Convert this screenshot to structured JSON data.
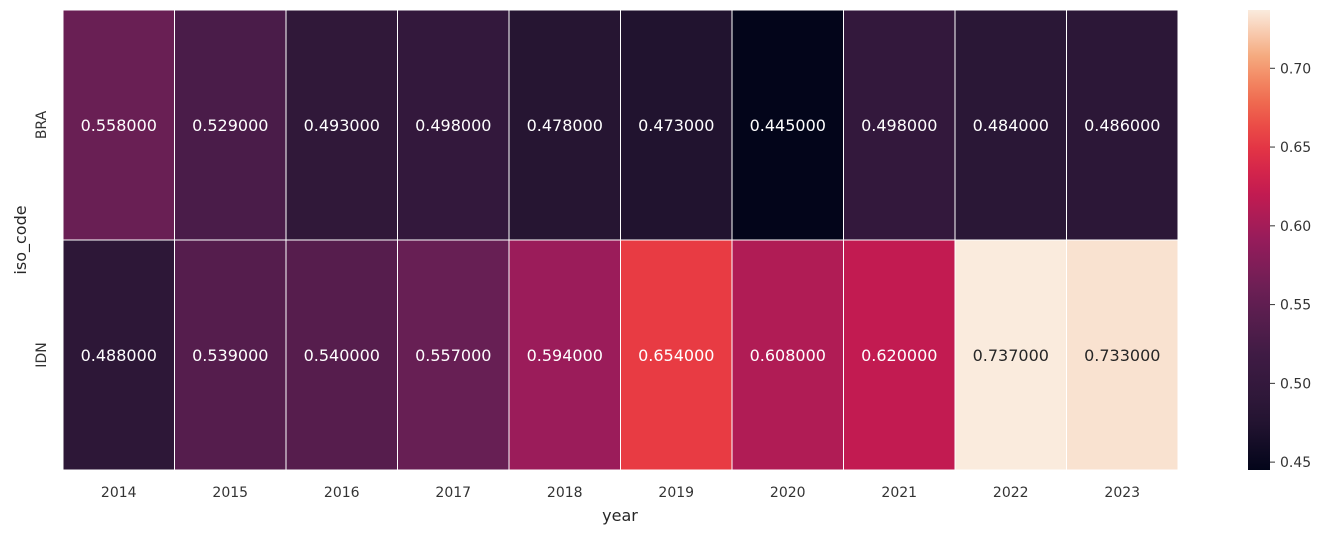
{
  "chart_data": {
    "type": "heatmap",
    "title": "",
    "xlabel": "year",
    "ylabel": "iso_code",
    "x": [
      "2014",
      "2015",
      "2016",
      "2017",
      "2018",
      "2019",
      "2020",
      "2021",
      "2022",
      "2023"
    ],
    "y": [
      "BRA",
      "IDN"
    ],
    "values": [
      [
        0.558,
        0.529,
        0.493,
        0.498,
        0.478,
        0.473,
        0.445,
        0.498,
        0.484,
        0.486
      ],
      [
        0.488,
        0.539,
        0.54,
        0.557,
        0.594,
        0.654,
        0.608,
        0.62,
        0.737,
        0.733
      ]
    ],
    "value_labels": [
      [
        "0.558000",
        "0.529000",
        "0.493000",
        "0.498000",
        "0.478000",
        "0.473000",
        "0.445000",
        "0.498000",
        "0.484000",
        "0.486000"
      ],
      [
        "0.488000",
        "0.539000",
        "0.540000",
        "0.557000",
        "0.594000",
        "0.654000",
        "0.608000",
        "0.620000",
        "0.737000",
        "0.733000"
      ]
    ],
    "colorbar": {
      "range": [
        0.445,
        0.737
      ],
      "ticks": [
        "0.45",
        "0.50",
        "0.55",
        "0.60",
        "0.65",
        "0.70"
      ],
      "colormap": "rocket",
      "placement": "right"
    },
    "grid": false,
    "legend": "none"
  }
}
